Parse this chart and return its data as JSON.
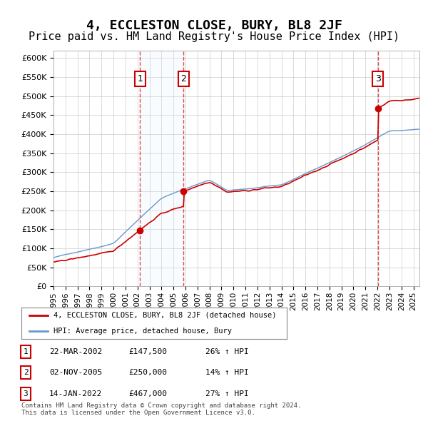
{
  "title": "4, ECCLESTON CLOSE, BURY, BL8 2JF",
  "subtitle": "Price paid vs. HM Land Registry's House Price Index (HPI)",
  "title_fontsize": 13,
  "subtitle_fontsize": 11,
  "ylabel_ticks": [
    "£0",
    "£50K",
    "£100K",
    "£150K",
    "£200K",
    "£250K",
    "£300K",
    "£350K",
    "£400K",
    "£450K",
    "£500K",
    "£550K",
    "£600K"
  ],
  "ylabel_values": [
    0,
    50000,
    100000,
    150000,
    200000,
    250000,
    300000,
    350000,
    400000,
    450000,
    500000,
    550000,
    600000
  ],
  "ylim": [
    0,
    620000
  ],
  "xlim_start": 1995.0,
  "xlim_end": 2025.5,
  "line1_color": "#cc0000",
  "line2_color": "#6699cc",
  "sale_dates": [
    2002.22,
    2005.84,
    2022.04
  ],
  "sale_prices": [
    147500,
    250000,
    467000
  ],
  "sale_labels": [
    "1",
    "2",
    "3"
  ],
  "legend_line1": "4, ECCLESTON CLOSE, BURY, BL8 2JF (detached house)",
  "legend_line2": "HPI: Average price, detached house, Bury",
  "table_data": [
    [
      "1",
      "22-MAR-2002",
      "£147,500",
      "26% ↑ HPI"
    ],
    [
      "2",
      "02-NOV-2005",
      "£250,000",
      "14% ↑ HPI"
    ],
    [
      "3",
      "14-JAN-2022",
      "£467,000",
      "27% ↑ HPI"
    ]
  ],
  "footnote": "Contains HM Land Registry data © Crown copyright and database right 2024.\nThis data is licensed under the Open Government Licence v3.0.",
  "bg_color": "#ffffff",
  "grid_color": "#cccccc",
  "shading_color": "#ddeeff"
}
